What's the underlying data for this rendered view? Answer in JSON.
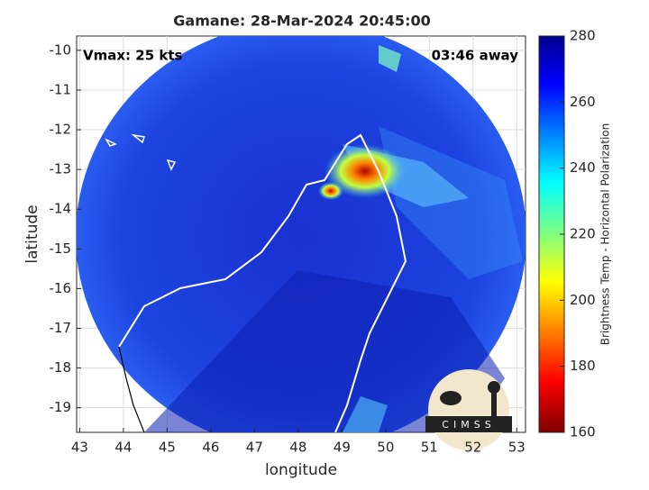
{
  "chart_data": {
    "type": "heatmap-map",
    "title": "Gamane: 28-Mar-2024 20:45:00",
    "annotations": [
      "Vmax: 25 kts",
      "03:46 away"
    ],
    "xlabel": "longitude",
    "ylabel": "latitude",
    "xlim": [
      42.93,
      53.2
    ],
    "ylim": [
      -19.62,
      -9.64
    ],
    "xticks": [
      43,
      44,
      45,
      46,
      47,
      48,
      49,
      50,
      51,
      52,
      53
    ],
    "yticks": [
      -10,
      -11,
      -12,
      -13,
      -14,
      -15,
      -16,
      -17,
      -18,
      -19
    ],
    "grid": true,
    "colorbar": {
      "label": "Brightness Temp - Horizontal Polarization",
      "lim": [
        160,
        280
      ],
      "ticks": [
        160,
        180,
        200,
        220,
        240,
        260,
        280
      ]
    },
    "logo_text": "CIMSS"
  }
}
